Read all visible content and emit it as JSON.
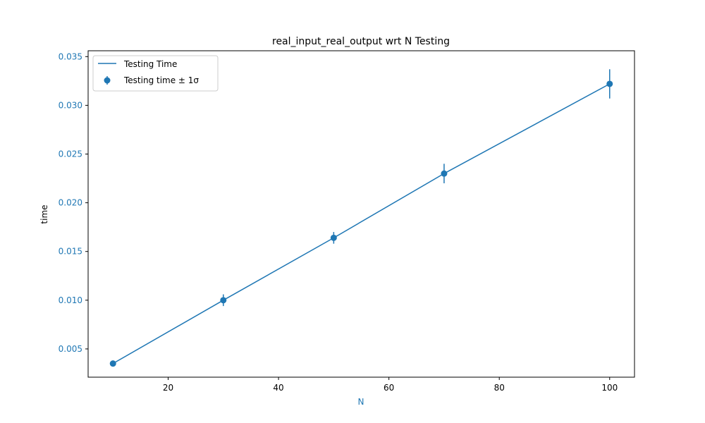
{
  "chart_data": {
    "type": "line",
    "title": "real_input_real_output wrt N Testing",
    "xlabel": "N",
    "ylabel": "time",
    "xlim": [
      5.5,
      104.5
    ],
    "ylim": [
      0.0021,
      0.0356
    ],
    "x_ticks": [
      20,
      40,
      60,
      80,
      100
    ],
    "y_ticks": [
      0.005,
      0.01,
      0.015,
      0.02,
      0.025,
      0.03,
      0.035
    ],
    "x_tick_labels": [
      "20",
      "40",
      "60",
      "80",
      "100"
    ],
    "y_tick_labels": [
      "0.005",
      "0.010",
      "0.015",
      "0.020",
      "0.025",
      "0.030",
      "0.035"
    ],
    "x": [
      10,
      30,
      50,
      70,
      100
    ],
    "series": [
      {
        "name": "Testing Time",
        "kind": "line",
        "values": [
          0.0035,
          0.01,
          0.0164,
          0.023,
          0.0322
        ]
      },
      {
        "name": "Testing time ± 1σ",
        "kind": "errorbar",
        "values": [
          0.0035,
          0.01,
          0.0164,
          0.023,
          0.0322
        ],
        "errors": [
          0.0001,
          0.0006,
          0.0006,
          0.001,
          0.0015
        ]
      }
    ],
    "grid": false,
    "legend_position": "top-left",
    "colors": {
      "series": "#1f77b4",
      "axis_label": "#1f77b4",
      "tick_label": "#1f77b4",
      "frame": "#000000"
    }
  }
}
